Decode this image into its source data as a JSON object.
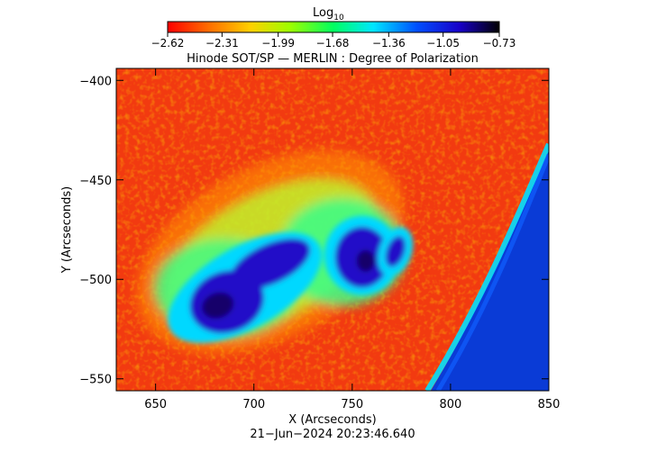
{
  "colorbar": {
    "title_main": "Log",
    "title_sub": "10",
    "ticks": [
      -2.62,
      -2.31,
      -1.99,
      -1.68,
      -1.36,
      -1.05,
      -0.73
    ],
    "tick_labels": [
      "−2.62",
      "−2.31",
      "−1.99",
      "−1.68",
      "−1.36",
      "−1.05",
      "−0.73"
    ],
    "range": [
      -2.62,
      -0.73
    ],
    "colormap_stops": [
      "#ff0000",
      "#ff6a00",
      "#ffd000",
      "#9cff00",
      "#00ff60",
      "#00e6ff",
      "#0050ff",
      "#1800c8",
      "#000000"
    ]
  },
  "chart_data": {
    "type": "heatmap",
    "title": "Hinode SOT/SP — MERLIN : Degree of Polarization",
    "xlabel": "X (Arcseconds)",
    "ylabel": "Y (Arcseconds)",
    "xlim": [
      630,
      850
    ],
    "ylim": [
      -556,
      -394
    ],
    "xticks": [
      650,
      700,
      750,
      800,
      850
    ],
    "yticks": [
      -400,
      -450,
      -500,
      -550
    ],
    "xtick_labels": [
      "650",
      "700",
      "750",
      "800",
      "850"
    ],
    "ytick_labels": [
      "−400",
      "−450",
      "−500",
      "−550"
    ],
    "timestamp": "21−Jun−2024 20:23:46.640",
    "background_value": -2.55,
    "features": [
      {
        "kind": "sunspot",
        "x": 700,
        "y": -505,
        "value": -0.85
      },
      {
        "kind": "sunspot",
        "x": 755,
        "y": -488,
        "value": -0.9
      },
      {
        "kind": "pore",
        "x": 772,
        "y": -486,
        "value": -1.0
      },
      {
        "kind": "limb_region",
        "x": 832,
        "y": -520,
        "value": -1.3
      }
    ]
  }
}
